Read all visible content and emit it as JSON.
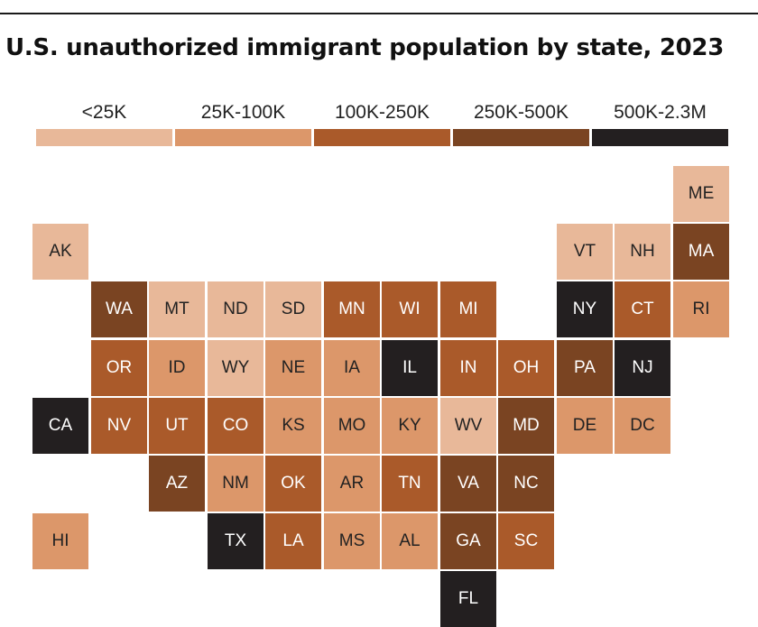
{
  "title": "U.S. unauthorized immigrant population by state, 2023",
  "colors": {
    "lt25k": "#e8b899",
    "k25_100": "#dc976a",
    "k100_250": "#aa5a2a",
    "k250_500": "#7a4422",
    "k500_2300": "#231f20"
  },
  "chart_data": {
    "type": "heatmap",
    "title": "U.S. unauthorized immigrant population by state, 2023",
    "legend": {
      "placement": "top",
      "bins": [
        {
          "label": "<25K",
          "color_key": "lt25k"
        },
        {
          "label": "25K-100K",
          "color_key": "k25_100"
        },
        {
          "label": "100K-250K",
          "color_key": "k100_250"
        },
        {
          "label": "250K-500K",
          "color_key": "k250_500"
        },
        {
          "label": "500K-2.3M",
          "color_key": "k500_2300"
        }
      ]
    },
    "states": [
      {
        "abbr": "ME",
        "row": 0,
        "col": 11,
        "bin": 0
      },
      {
        "abbr": "AK",
        "row": 1,
        "col": 0,
        "bin": 0
      },
      {
        "abbr": "VT",
        "row": 1,
        "col": 9,
        "bin": 0
      },
      {
        "abbr": "NH",
        "row": 1,
        "col": 10,
        "bin": 0
      },
      {
        "abbr": "MA",
        "row": 1,
        "col": 11,
        "bin": 3
      },
      {
        "abbr": "WA",
        "row": 2,
        "col": 1,
        "bin": 3
      },
      {
        "abbr": "MT",
        "row": 2,
        "col": 2,
        "bin": 0
      },
      {
        "abbr": "ND",
        "row": 2,
        "col": 3,
        "bin": 0
      },
      {
        "abbr": "SD",
        "row": 2,
        "col": 4,
        "bin": 0
      },
      {
        "abbr": "MN",
        "row": 2,
        "col": 5,
        "bin": 2
      },
      {
        "abbr": "WI",
        "row": 2,
        "col": 6,
        "bin": 2
      },
      {
        "abbr": "MI",
        "row": 2,
        "col": 7,
        "bin": 2
      },
      {
        "abbr": "NY",
        "row": 2,
        "col": 9,
        "bin": 4
      },
      {
        "abbr": "CT",
        "row": 2,
        "col": 10,
        "bin": 2
      },
      {
        "abbr": "RI",
        "row": 2,
        "col": 11,
        "bin": 1
      },
      {
        "abbr": "OR",
        "row": 3,
        "col": 1,
        "bin": 2
      },
      {
        "abbr": "ID",
        "row": 3,
        "col": 2,
        "bin": 1
      },
      {
        "abbr": "WY",
        "row": 3,
        "col": 3,
        "bin": 0
      },
      {
        "abbr": "NE",
        "row": 3,
        "col": 4,
        "bin": 1
      },
      {
        "abbr": "IA",
        "row": 3,
        "col": 5,
        "bin": 1
      },
      {
        "abbr": "IL",
        "row": 3,
        "col": 6,
        "bin": 4
      },
      {
        "abbr": "IN",
        "row": 3,
        "col": 7,
        "bin": 2
      },
      {
        "abbr": "OH",
        "row": 3,
        "col": 8,
        "bin": 2
      },
      {
        "abbr": "PA",
        "row": 3,
        "col": 9,
        "bin": 3
      },
      {
        "abbr": "NJ",
        "row": 3,
        "col": 10,
        "bin": 4
      },
      {
        "abbr": "CA",
        "row": 4,
        "col": 0,
        "bin": 4
      },
      {
        "abbr": "NV",
        "row": 4,
        "col": 1,
        "bin": 2
      },
      {
        "abbr": "UT",
        "row": 4,
        "col": 2,
        "bin": 2
      },
      {
        "abbr": "CO",
        "row": 4,
        "col": 3,
        "bin": 2
      },
      {
        "abbr": "KS",
        "row": 4,
        "col": 4,
        "bin": 1
      },
      {
        "abbr": "MO",
        "row": 4,
        "col": 5,
        "bin": 1
      },
      {
        "abbr": "KY",
        "row": 4,
        "col": 6,
        "bin": 1
      },
      {
        "abbr": "WV",
        "row": 4,
        "col": 7,
        "bin": 0
      },
      {
        "abbr": "MD",
        "row": 4,
        "col": 8,
        "bin": 3
      },
      {
        "abbr": "DE",
        "row": 4,
        "col": 9,
        "bin": 1
      },
      {
        "abbr": "DC",
        "row": 4,
        "col": 10,
        "bin": 1
      },
      {
        "abbr": "AZ",
        "row": 5,
        "col": 2,
        "bin": 3
      },
      {
        "abbr": "NM",
        "row": 5,
        "col": 3,
        "bin": 1
      },
      {
        "abbr": "OK",
        "row": 5,
        "col": 4,
        "bin": 2
      },
      {
        "abbr": "AR",
        "row": 5,
        "col": 5,
        "bin": 1
      },
      {
        "abbr": "TN",
        "row": 5,
        "col": 6,
        "bin": 2
      },
      {
        "abbr": "VA",
        "row": 5,
        "col": 7,
        "bin": 3
      },
      {
        "abbr": "NC",
        "row": 5,
        "col": 8,
        "bin": 3
      },
      {
        "abbr": "HI",
        "row": 6,
        "col": 0,
        "bin": 1
      },
      {
        "abbr": "TX",
        "row": 6,
        "col": 3,
        "bin": 4
      },
      {
        "abbr": "LA",
        "row": 6,
        "col": 4,
        "bin": 2
      },
      {
        "abbr": "MS",
        "row": 6,
        "col": 5,
        "bin": 1
      },
      {
        "abbr": "AL",
        "row": 6,
        "col": 6,
        "bin": 1
      },
      {
        "abbr": "GA",
        "row": 6,
        "col": 7,
        "bin": 3
      },
      {
        "abbr": "SC",
        "row": 6,
        "col": 8,
        "bin": 2
      },
      {
        "abbr": "FL",
        "row": 7,
        "col": 7,
        "bin": 4
      }
    ]
  }
}
